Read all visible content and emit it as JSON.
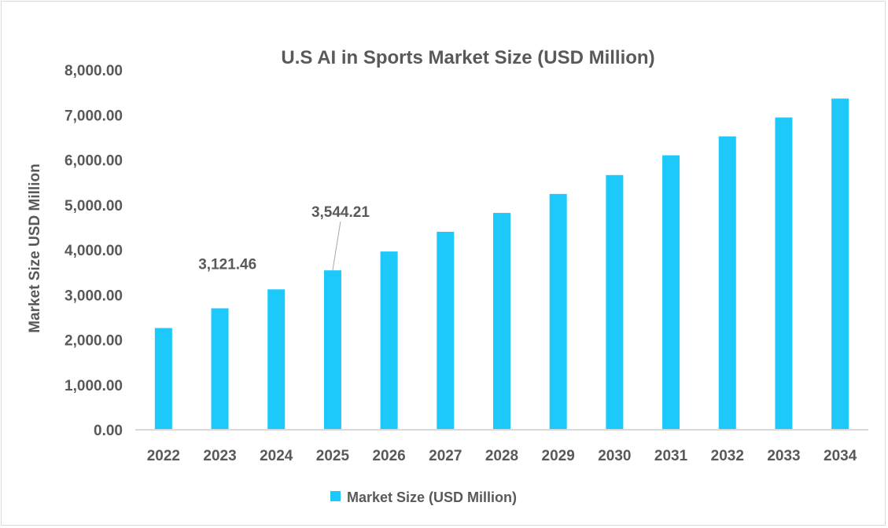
{
  "chart_data": {
    "type": "bar",
    "title": "U.S AI in Sports Market Size (USD Million)",
    "xlabel": "",
    "ylabel": "Market Size USD Million",
    "ylim": [
      0,
      8000
    ],
    "yticks": [
      "0.00",
      "1,000.00",
      "2,000.00",
      "3,000.00",
      "4,000.00",
      "5,000.00",
      "6,000.00",
      "7,000.00",
      "8,000.00"
    ],
    "categories": [
      "2022",
      "2023",
      "2024",
      "2025",
      "2026",
      "2027",
      "2028",
      "2029",
      "2030",
      "2031",
      "2032",
      "2033",
      "2034"
    ],
    "series": [
      {
        "name": "Market Size (USD Million)",
        "values": [
          2262,
          2700,
          3121.46,
          3544.21,
          3963,
          4401,
          4822,
          5243,
          5663,
          6102,
          6523,
          6943,
          7364
        ]
      }
    ],
    "data_labels": [
      {
        "category": "2024",
        "text": "3,121.46"
      },
      {
        "category": "2025",
        "text": "3,544.21"
      }
    ],
    "grid": false,
    "legend": "bottom",
    "colors": {
      "bar": "#1DC8FA",
      "text": "#595959",
      "axis": "#d9d9d9"
    }
  }
}
